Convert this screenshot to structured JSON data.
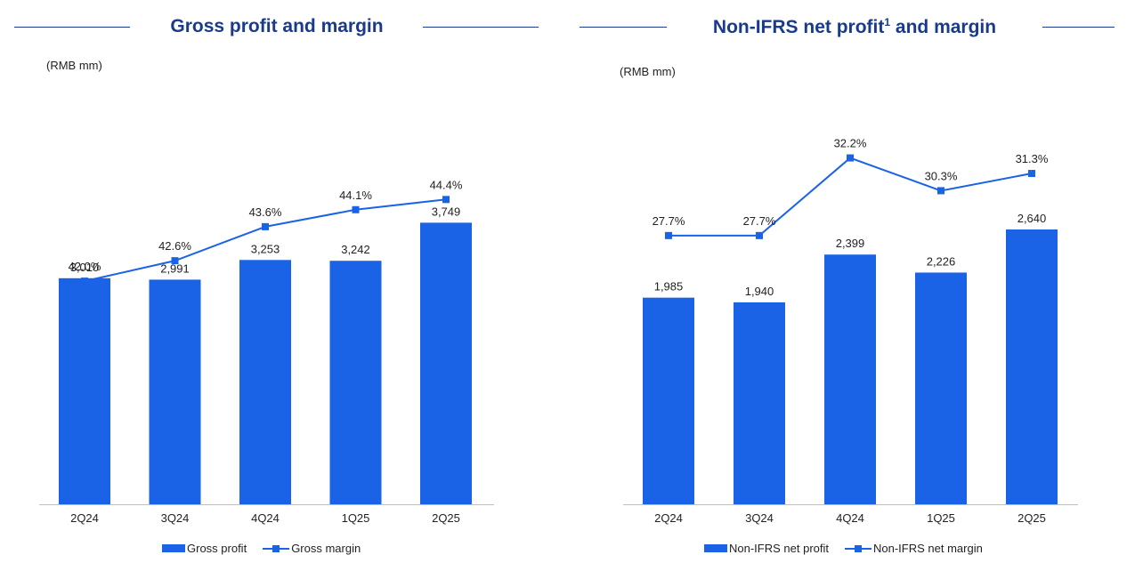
{
  "colors": {
    "bar": "#1a63e6",
    "line": "#1a63e6",
    "title": "#1a3a8c"
  },
  "panels": {
    "left": {
      "title": "Gross profit and margin",
      "unit": "(RMB mm)",
      "legend": {
        "bar_label": "Gross profit",
        "line_label": "Gross margin"
      }
    },
    "right": {
      "title": "Non-IFRS net profit",
      "title_sup": "1",
      "title_suffix": " and margin",
      "unit": "(RMB mm)",
      "legend": {
        "bar_label": "Non-IFRS net profit",
        "line_label": "Non-IFRS net margin"
      }
    }
  },
  "chart_data": [
    {
      "type": "bar+line",
      "title": "Gross profit and margin",
      "unit": "(RMB mm)",
      "categories": [
        "2Q24",
        "3Q24",
        "4Q24",
        "1Q25",
        "2Q25"
      ],
      "series": [
        {
          "name": "Gross profit",
          "type": "bar",
          "values": [
            3010,
            2991,
            3253,
            3242,
            3749
          ],
          "labels": [
            "3,010",
            "2,991",
            "3,253",
            "3,242",
            "3,749"
          ]
        },
        {
          "name": "Gross margin",
          "type": "line",
          "values": [
            42.0,
            42.6,
            43.6,
            44.1,
            44.4
          ],
          "labels": [
            "42.0%",
            "42.6%",
            "43.6%",
            "44.1%",
            "44.4%"
          ]
        }
      ],
      "bar_ylim": [
        0,
        5530
      ],
      "line_ylim": [
        35.44,
        47.65
      ],
      "legend_position": "bottom"
    },
    {
      "type": "bar+line",
      "title": "Non-IFRS net profit and margin",
      "unit": "(RMB mm)",
      "categories": [
        "2Q24",
        "3Q24",
        "4Q24",
        "1Q25",
        "2Q25"
      ],
      "series": [
        {
          "name": "Non-IFRS net profit",
          "type": "bar",
          "values": [
            1985,
            1940,
            2399,
            2226,
            2640
          ],
          "labels": [
            "1,985",
            "1,940",
            "2,399",
            "2,226",
            "2,640"
          ]
        },
        {
          "name": "Non-IFRS net margin",
          "type": "line",
          "values": [
            27.7,
            27.7,
            32.2,
            30.3,
            31.3
          ],
          "labels": [
            "27.7%",
            "27.7%",
            "32.2%",
            "30.3%",
            "31.3%"
          ]
        }
      ],
      "bar_ylim": [
        0,
        3990
      ],
      "line_ylim": [
        12.12,
        36.2
      ],
      "legend_position": "bottom"
    }
  ]
}
